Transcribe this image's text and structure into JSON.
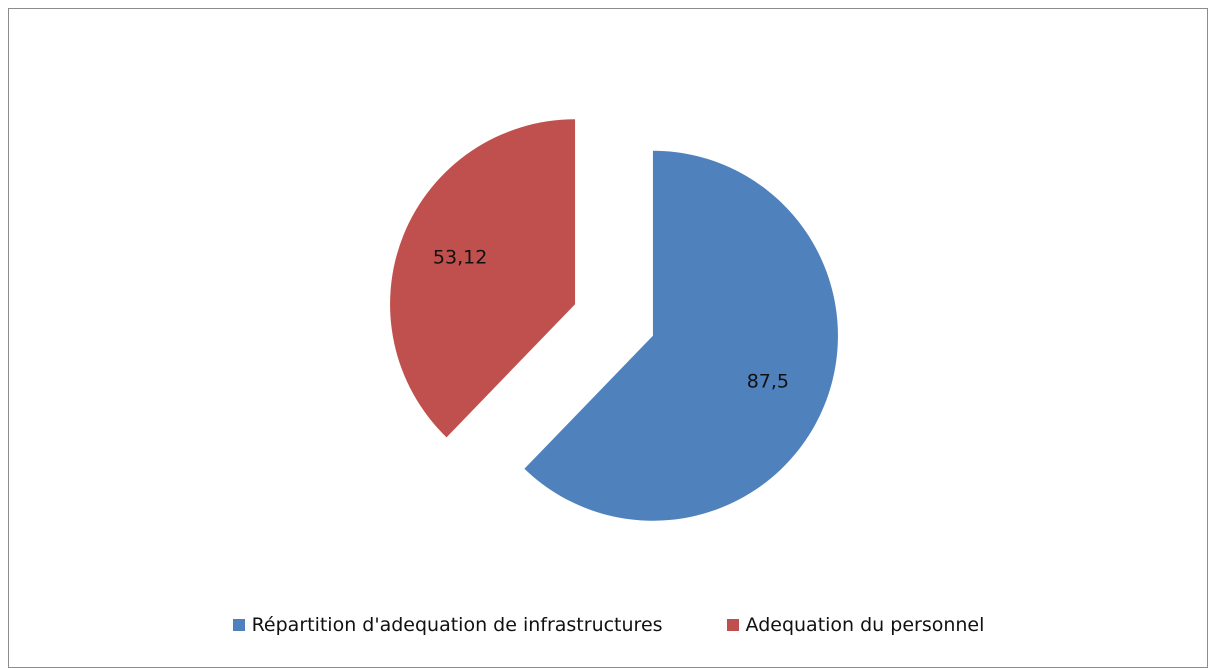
{
  "chart_data": {
    "type": "pie",
    "title": "",
    "series": [
      {
        "name": "Répartition d'adequation de infrastructures",
        "value": 87.5,
        "label": "87,5",
        "color": "#4f81bd"
      },
      {
        "name": "Adequation du personnel",
        "value": 53.12,
        "label": "53,12",
        "color": "#c0504d"
      }
    ],
    "legend": {
      "position": "bottom",
      "items": [
        "Répartition d'adequation de infrastructures",
        "Adequation du personnel"
      ]
    },
    "exploded": true,
    "start_angle_deg": 0,
    "direction": "clockwise"
  }
}
